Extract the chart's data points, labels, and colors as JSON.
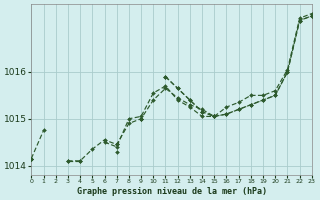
{
  "title": "Graphe pression niveau de la mer (hPa)",
  "background_color": "#d4eeee",
  "grid_color": "#aacccc",
  "line_color": "#2d5a2d",
  "xlim": [
    0,
    23
  ],
  "ylim": [
    1013.8,
    1017.45
  ],
  "yticks": [
    1014,
    1015,
    1016
  ],
  "xtick_labels": [
    "0",
    "1",
    "2",
    "3",
    "4",
    "5",
    "6",
    "7",
    "8",
    "9",
    "10",
    "11",
    "12",
    "13",
    "14",
    "15",
    "16",
    "17",
    "18",
    "19",
    "20",
    "21",
    "22",
    "23"
  ],
  "series": [
    [
      1014.15,
      1014.75,
      null,
      1014.1,
      1014.1,
      1014.35,
      1014.55,
      1014.45,
      1014.9,
      1015.0,
      1015.4,
      1015.65,
      1015.45,
      1015.3,
      1015.2,
      1015.05,
      1015.1,
      1015.2,
      1015.3,
      1015.4,
      1015.5,
      1016.0,
      1017.1,
      1017.2
    ],
    [
      1014.15,
      null,
      null,
      1014.1,
      1014.1,
      null,
      1014.5,
      1014.4,
      1015.0,
      1015.05,
      1015.55,
      1015.7,
      1015.4,
      1015.25,
      1015.05,
      1015.05,
      1015.1,
      1015.2,
      1015.3,
      1015.4,
      1015.5,
      1016.0,
      1017.1,
      1017.2
    ],
    [
      1014.15,
      null,
      null,
      null,
      null,
      null,
      null,
      1014.45,
      null,
      1015.0,
      null,
      1015.9,
      1015.65,
      1015.4,
      1015.15,
      1015.05,
      1015.25,
      1015.35,
      1015.5,
      1015.5,
      1015.6,
      1016.05,
      1017.15,
      1017.25
    ],
    [
      1014.15,
      null,
      null,
      null,
      null,
      null,
      null,
      1014.3,
      null,
      1015.0,
      null,
      1015.9,
      1015.65,
      1015.4,
      1015.15,
      1015.05,
      null,
      null,
      null,
      null,
      null,
      null,
      null,
      null
    ]
  ]
}
